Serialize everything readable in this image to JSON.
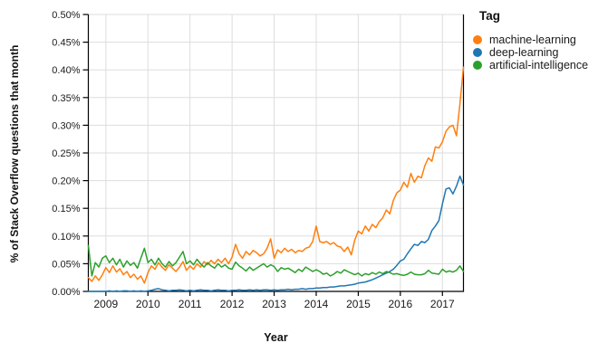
{
  "chart_data": {
    "type": "line",
    "title": "",
    "xlabel": "Year",
    "ylabel": "% of Stack Overflow questions that month",
    "legend_title": "Tag",
    "legend_position": "top-right-outside",
    "grid": true,
    "ylim": [
      0,
      0.5
    ],
    "y_tick_step": 0.05,
    "y_tick_labels": [
      "0.00%",
      "0.05%",
      "0.10%",
      "0.15%",
      "0.20%",
      "0.25%",
      "0.30%",
      "0.35%",
      "0.40%",
      "0.45%",
      "0.50%"
    ],
    "x_tick_labels": [
      "2009",
      "2010",
      "2011",
      "2012",
      "2013",
      "2014",
      "2015",
      "2016",
      "2017"
    ],
    "x_unit": "month",
    "x_range": [
      "2008-08",
      "2017-07"
    ],
    "first_year_tick_index": 5,
    "months_per_year": 12,
    "axis_color": "#000000",
    "grid_color": "#dddddd",
    "series": [
      {
        "name": "machine-learning",
        "color": "#ff7f0e",
        "values": [
          0.025,
          0.018,
          0.028,
          0.02,
          0.03,
          0.043,
          0.034,
          0.046,
          0.035,
          0.041,
          0.03,
          0.036,
          0.025,
          0.031,
          0.022,
          0.028,
          0.015,
          0.034,
          0.046,
          0.04,
          0.052,
          0.044,
          0.038,
          0.048,
          0.042,
          0.036,
          0.044,
          0.054,
          0.038,
          0.046,
          0.04,
          0.05,
          0.044,
          0.054,
          0.048,
          0.056,
          0.05,
          0.058,
          0.052,
          0.06,
          0.05,
          0.062,
          0.085,
          0.068,
          0.06,
          0.072,
          0.066,
          0.074,
          0.07,
          0.064,
          0.068,
          0.078,
          0.095,
          0.06,
          0.075,
          0.07,
          0.078,
          0.072,
          0.076,
          0.07,
          0.074,
          0.072,
          0.078,
          0.08,
          0.09,
          0.118,
          0.09,
          0.088,
          0.09,
          0.085,
          0.088,
          0.082,
          0.08,
          0.072,
          0.08,
          0.066,
          0.093,
          0.109,
          0.104,
          0.118,
          0.109,
          0.121,
          0.115,
          0.126,
          0.133,
          0.147,
          0.14,
          0.164,
          0.178,
          0.183,
          0.197,
          0.188,
          0.213,
          0.197,
          0.208,
          0.205,
          0.227,
          0.241,
          0.235,
          0.261,
          0.259,
          0.27,
          0.289,
          0.297,
          0.3,
          0.281,
          0.338,
          0.405
        ]
      },
      {
        "name": "deep-learning",
        "color": "#1f77b4",
        "values": [
          0.0,
          0.0,
          0.0,
          0.0,
          0.0,
          0.0,
          0.001,
          0.0,
          0.001,
          0.0,
          0.001,
          0.001,
          0.0,
          0.001,
          0.0,
          0.001,
          0.0,
          0.001,
          0.002,
          0.004,
          0.005,
          0.003,
          0.002,
          0.001,
          0.002,
          0.002,
          0.003,
          0.002,
          0.001,
          0.002,
          0.001,
          0.002,
          0.003,
          0.002,
          0.002,
          0.001,
          0.002,
          0.003,
          0.002,
          0.002,
          0.001,
          0.002,
          0.002,
          0.003,
          0.002,
          0.002,
          0.003,
          0.002,
          0.003,
          0.002,
          0.003,
          0.003,
          0.002,
          0.003,
          0.002,
          0.003,
          0.003,
          0.004,
          0.003,
          0.004,
          0.004,
          0.005,
          0.004,
          0.005,
          0.005,
          0.006,
          0.006,
          0.007,
          0.007,
          0.008,
          0.008,
          0.009,
          0.01,
          0.01,
          0.011,
          0.012,
          0.013,
          0.015,
          0.016,
          0.017,
          0.019,
          0.021,
          0.024,
          0.027,
          0.03,
          0.033,
          0.036,
          0.04,
          0.047,
          0.055,
          0.058,
          0.068,
          0.077,
          0.085,
          0.083,
          0.09,
          0.088,
          0.094,
          0.11,
          0.118,
          0.128,
          0.158,
          0.185,
          0.187,
          0.176,
          0.19,
          0.208,
          0.192
        ]
      },
      {
        "name": "artificial-intelligence",
        "color": "#2ca02c",
        "values": [
          0.083,
          0.028,
          0.052,
          0.044,
          0.06,
          0.064,
          0.052,
          0.06,
          0.048,
          0.058,
          0.044,
          0.055,
          0.047,
          0.052,
          0.042,
          0.06,
          0.078,
          0.052,
          0.058,
          0.048,
          0.06,
          0.05,
          0.044,
          0.054,
          0.046,
          0.052,
          0.062,
          0.072,
          0.05,
          0.055,
          0.048,
          0.058,
          0.05,
          0.044,
          0.052,
          0.046,
          0.042,
          0.05,
          0.044,
          0.048,
          0.042,
          0.04,
          0.053,
          0.046,
          0.042,
          0.037,
          0.044,
          0.038,
          0.042,
          0.046,
          0.05,
          0.044,
          0.048,
          0.045,
          0.036,
          0.043,
          0.04,
          0.042,
          0.038,
          0.034,
          0.04,
          0.036,
          0.044,
          0.04,
          0.036,
          0.039,
          0.036,
          0.031,
          0.033,
          0.028,
          0.031,
          0.036,
          0.033,
          0.039,
          0.036,
          0.033,
          0.03,
          0.033,
          0.028,
          0.032,
          0.03,
          0.034,
          0.031,
          0.035,
          0.032,
          0.036,
          0.034,
          0.031,
          0.032,
          0.03,
          0.029,
          0.031,
          0.035,
          0.031,
          0.03,
          0.03,
          0.032,
          0.038,
          0.033,
          0.032,
          0.031,
          0.04,
          0.035,
          0.037,
          0.035,
          0.038,
          0.046,
          0.036
        ]
      }
    ]
  }
}
